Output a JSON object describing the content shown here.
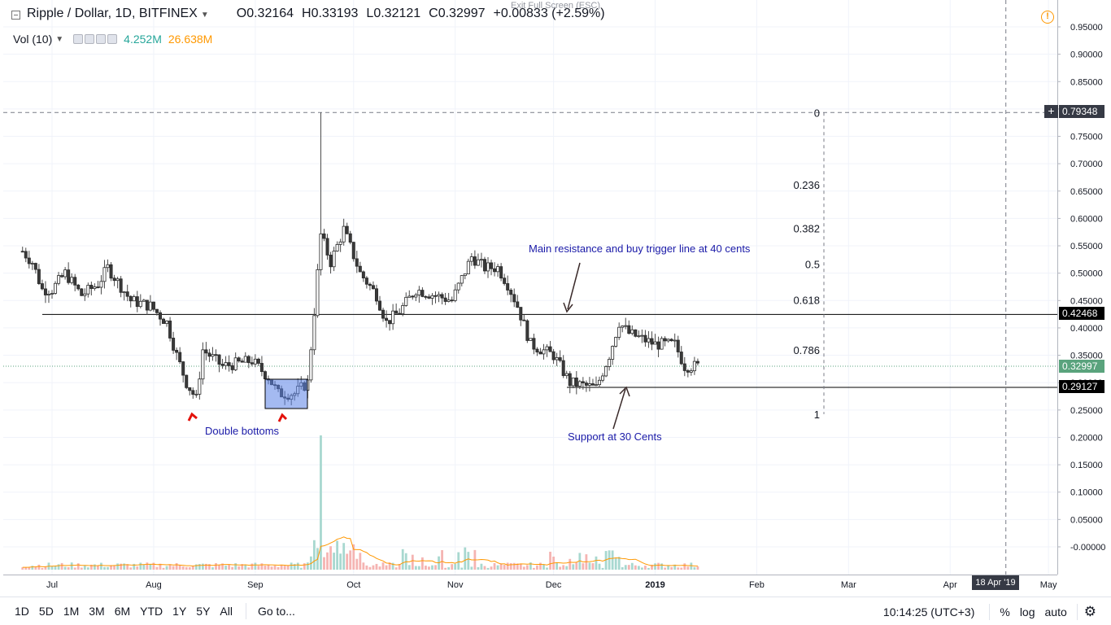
{
  "header": {
    "symbol": "Ripple / Dollar, 1D, BITFINEX",
    "open": "O0.32164",
    "high": "H0.33193",
    "low": "L0.32121",
    "close": "C0.32997",
    "change": "+0.00833 (+2.59%)",
    "exit_fullscreen": "Exit Full Screen (ESC)",
    "warning_icon": "!"
  },
  "volume_legend": {
    "label": "Vol (10)",
    "value": "4.252M",
    "ma_value": "26.638M"
  },
  "price_tags": {
    "top": "0.79348",
    "resistance": "0.42468",
    "current": "0.32997",
    "support": "0.29127",
    "plus": "+"
  },
  "date_tag": "18 Apr '19",
  "annotations": {
    "resistance": "Main resistance and buy trigger line at 40 cents",
    "support": "Support at 30 Cents",
    "double_bottoms": "Double bottoms"
  },
  "toolbar": {
    "timeframes": [
      "1D",
      "5D",
      "1M",
      "3M",
      "6M",
      "YTD",
      "1Y",
      "5Y",
      "All"
    ],
    "goto": "Go to...",
    "clock": "10:14:25 (UTC+3)",
    "percent": "%",
    "log": "log",
    "auto": "auto"
  },
  "colors": {
    "up": "#26a69a",
    "down": "#ef5350",
    "vol_up": "#a8d8d0",
    "vol_down": "#f5b4b2",
    "vol_ma": "#ff9800",
    "annotation": "#1a1aa8"
  },
  "chart_data": {
    "type": "candlestick",
    "title": "Ripple / Dollar, 1D, BITFINEX",
    "x_ticks": [
      "Jul",
      "Aug",
      "Sep",
      "Oct",
      "Nov",
      "Dec",
      "2019",
      "Feb",
      "Mar",
      "Apr",
      "May"
    ],
    "y_ticks": [
      "0.95000",
      "0.90000",
      "0.85000",
      "0.80000",
      "0.75000",
      "0.70000",
      "0.65000",
      "0.60000",
      "0.55000",
      "0.50000",
      "0.45000",
      "0.40000",
      "0.35000",
      "0.30000",
      "0.25000",
      "0.20000",
      "0.15000",
      "0.10000",
      "0.05000",
      "-0.00000"
    ],
    "ylim": [
      -0.02,
      0.96
    ],
    "fib_levels": [
      {
        "label": "0",
        "price": 0.79348
      },
      {
        "label": "0.236",
        "price": 0.6618
      },
      {
        "label": "0.382",
        "price": 0.582
      },
      {
        "label": "0.5",
        "price": 0.5165
      },
      {
        "label": "0.618",
        "price": 0.4515
      },
      {
        "label": "0.786",
        "price": 0.36
      },
      {
        "label": "1",
        "price": 0.2424
      }
    ],
    "horizontal_lines": [
      {
        "name": "resistance",
        "price": 0.42468
      },
      {
        "name": "support",
        "price": 0.29127
      }
    ],
    "close_series": [
      [
        "2018-06-22",
        0.54
      ],
      [
        "2018-06-25",
        0.52
      ],
      [
        "2018-06-28",
        0.47
      ],
      [
        "2018-07-01",
        0.47
      ],
      [
        "2018-07-05",
        0.5
      ],
      [
        "2018-07-10",
        0.46
      ],
      [
        "2018-07-15",
        0.48
      ],
      [
        "2018-07-18",
        0.51
      ],
      [
        "2018-07-25",
        0.45
      ],
      [
        "2018-07-31",
        0.44
      ],
      [
        "2018-08-05",
        0.41
      ],
      [
        "2018-08-08",
        0.35
      ],
      [
        "2018-08-11",
        0.3
      ],
      [
        "2018-08-14",
        0.27
      ],
      [
        "2018-08-16",
        0.36
      ],
      [
        "2018-08-22",
        0.33
      ],
      [
        "2018-08-31",
        0.34
      ],
      [
        "2018-09-05",
        0.31
      ],
      [
        "2018-09-08",
        0.28
      ],
      [
        "2018-09-13",
        0.28
      ],
      [
        "2018-09-17",
        0.3
      ],
      [
        "2018-09-19",
        0.43
      ],
      [
        "2018-09-21",
        0.57
      ],
      [
        "2018-09-24",
        0.52
      ],
      [
        "2018-09-28",
        0.58
      ],
      [
        "2018-10-03",
        0.5
      ],
      [
        "2018-10-08",
        0.46
      ],
      [
        "2018-10-11",
        0.41
      ],
      [
        "2018-10-15",
        0.43
      ],
      [
        "2018-10-20",
        0.47
      ],
      [
        "2018-10-31",
        0.45
      ],
      [
        "2018-11-06",
        0.53
      ],
      [
        "2018-11-10",
        0.51
      ],
      [
        "2018-11-14",
        0.51
      ],
      [
        "2018-11-17",
        0.48
      ],
      [
        "2018-11-20",
        0.44
      ],
      [
        "2018-11-24",
        0.37
      ],
      [
        "2018-12-01",
        0.35
      ],
      [
        "2018-12-06",
        0.3
      ],
      [
        "2018-12-14",
        0.29
      ],
      [
        "2018-12-18",
        0.35
      ],
      [
        "2018-12-21",
        0.41
      ],
      [
        "2018-12-24",
        0.39
      ],
      [
        "2019-01-01",
        0.37
      ],
      [
        "2019-01-07",
        0.37
      ],
      [
        "2019-01-10",
        0.33
      ],
      [
        "2019-01-14",
        0.32997
      ]
    ],
    "max_high": {
      "date": "2018-09-21",
      "price": 0.79348
    }
  }
}
